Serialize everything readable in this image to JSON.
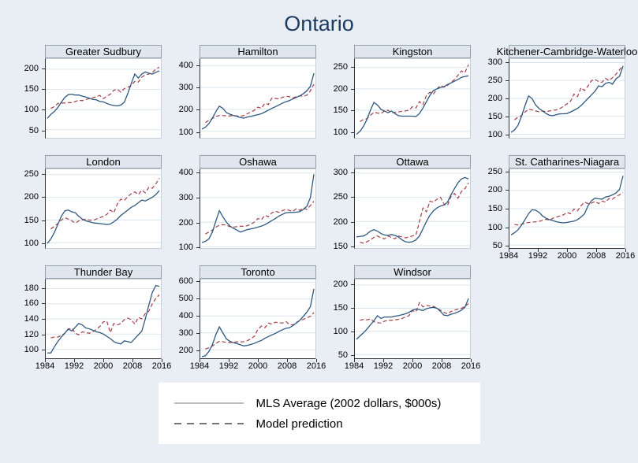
{
  "figure": {
    "title": "Ontario",
    "colors": {
      "background": "#e9eef4",
      "plot-bg": "#ffffff",
      "gridline": "#d9e5ee",
      "light-border": "#c6cfd8",
      "axis": "#303338",
      "mls-line": "#2b567f",
      "model-line": "#a23b44",
      "title": "#1c3c60",
      "panel-title-bg": "#dfe6ed",
      "panel-title-border": "#93a1ad",
      "legend-bg": "#ffffff",
      "legend-solid-sample": "#b9bdc1",
      "legend-dashed-sample": "#73777b"
    }
  },
  "legend": {
    "items": [
      {
        "style": "solid",
        "label": "MLS Average (2002 dollars, $000s)"
      },
      {
        "style": "dashed",
        "label": "Model prediction"
      }
    ]
  },
  "chart_data": {
    "type": "line",
    "title": "Ontario",
    "x_label_ticks": [
      1984,
      1992,
      2000,
      2008,
      2016
    ],
    "x": [
      1984,
      1985,
      1986,
      1987,
      1988,
      1989,
      1990,
      1991,
      1992,
      1993,
      1994,
      1995,
      1996,
      1997,
      1998,
      1999,
      2000,
      2001,
      2002,
      2003,
      2004,
      2005,
      2006,
      2007,
      2008,
      2009,
      2010,
      2011,
      2012,
      2013,
      2014,
      2015,
      2016
    ],
    "series_names": [
      "MLS Average (2002 dollars, $000s)",
      "Model prediction"
    ],
    "panels": [
      {
        "title": "Greater Sudbury",
        "yticks": [
          50,
          100,
          150,
          200
        ],
        "ylim": [
          30,
          225
        ],
        "has_xaxis": false,
        "mls": [
          78,
          88,
          95,
          105,
          118,
          130,
          137,
          138,
          136,
          136,
          133,
          131,
          128,
          125,
          124,
          120,
          119,
          115,
          112,
          110,
          109,
          111,
          118,
          140,
          165,
          188,
          178,
          188,
          193,
          190,
          188,
          192,
          196
        ],
        "model": [
          null,
          103,
          107,
          115,
          116,
          116,
          117,
          117,
          120,
          123,
          122,
          125,
          127,
          129,
          132,
          135,
          127,
          133,
          138,
          148,
          150,
          143,
          152,
          155,
          160,
          170,
          168,
          180,
          186,
          188,
          192,
          200,
          205
        ]
      },
      {
        "title": "Hamilton",
        "yticks": [
          100,
          200,
          300,
          400
        ],
        "ylim": [
          70,
          430
        ],
        "has_xaxis": false,
        "mls": [
          110,
          118,
          135,
          160,
          190,
          215,
          205,
          185,
          178,
          172,
          168,
          162,
          160,
          165,
          168,
          172,
          176,
          180,
          188,
          196,
          205,
          212,
          220,
          228,
          235,
          240,
          248,
          255,
          262,
          272,
          285,
          305,
          365
        ],
        "model": [
          null,
          140,
          150,
          158,
          168,
          172,
          172,
          170,
          170,
          172,
          170,
          168,
          172,
          180,
          188,
          196,
          210,
          205,
          228,
          222,
          252,
          250,
          248,
          255,
          260,
          258,
          252,
          258,
          262,
          260,
          265,
          285,
          315
        ]
      },
      {
        "title": "Kingston",
        "yticks": [
          100,
          150,
          200,
          250
        ],
        "ylim": [
          85,
          270
        ],
        "has_xaxis": false,
        "mls": [
          93,
          100,
          112,
          128,
          150,
          168,
          162,
          152,
          148,
          144,
          148,
          142,
          137,
          136,
          136,
          136,
          136,
          135,
          142,
          155,
          170,
          185,
          196,
          200,
          203,
          205,
          210,
          214,
          218,
          222,
          227,
          229,
          231
        ],
        "model": [
          null,
          123,
          128,
          130,
          138,
          145,
          143,
          142,
          148,
          150,
          144,
          145,
          146,
          147,
          148,
          150,
          158,
          155,
          170,
          163,
          185,
          192,
          188,
          200,
          208,
          204,
          208,
          215,
          222,
          232,
          242,
          238,
          257
        ]
      },
      {
        "title": "Kitchener-Cambridge-Waterloo",
        "yticks": [
          100,
          150,
          200,
          250,
          300
        ],
        "ylim": [
          90,
          310
        ],
        "has_xaxis": false,
        "mls": [
          105,
          112,
          125,
          150,
          180,
          207,
          200,
          182,
          172,
          165,
          158,
          153,
          152,
          155,
          157,
          157,
          158,
          162,
          167,
          172,
          180,
          190,
          200,
          210,
          220,
          235,
          233,
          242,
          245,
          240,
          255,
          262,
          290
        ],
        "model": [
          null,
          140,
          148,
          152,
          162,
          170,
          168,
          165,
          163,
          165,
          163,
          165,
          167,
          168,
          172,
          178,
          185,
          192,
          212,
          205,
          230,
          222,
          235,
          250,
          253,
          247,
          245,
          256,
          250,
          258,
          268,
          280,
          292
        ]
      },
      {
        "title": "London",
        "yticks": [
          100,
          150,
          200,
          250
        ],
        "ylim": [
          88,
          262
        ],
        "has_xaxis": false,
        "mls": [
          98,
          108,
          122,
          140,
          158,
          170,
          172,
          168,
          166,
          158,
          152,
          148,
          146,
          144,
          143,
          142,
          141,
          140,
          141,
          146,
          152,
          160,
          166,
          172,
          178,
          182,
          188,
          194,
          192,
          196,
          200,
          206,
          215
        ],
        "model": [
          null,
          130,
          136,
          142,
          150,
          155,
          152,
          148,
          143,
          148,
          150,
          152,
          150,
          149,
          152,
          155,
          158,
          162,
          172,
          166,
          185,
          196,
          193,
          202,
          208,
          212,
          206,
          216,
          210,
          222,
          220,
          230,
          242
        ]
      },
      {
        "title": "Oshawa",
        "yticks": [
          100,
          200,
          300,
          400
        ],
        "ylim": [
          95,
          415
        ],
        "has_xaxis": false,
        "mls": [
          118,
          122,
          132,
          160,
          205,
          247,
          222,
          200,
          185,
          175,
          168,
          160,
          165,
          170,
          173,
          176,
          180,
          184,
          190,
          198,
          207,
          215,
          225,
          232,
          238,
          240,
          240,
          241,
          243,
          252,
          265,
          300,
          395
        ],
        "model": [
          null,
          152,
          160,
          168,
          180,
          188,
          190,
          188,
          182,
          180,
          182,
          184,
          183,
          186,
          192,
          200,
          215,
          210,
          228,
          222,
          238,
          245,
          240,
          247,
          252,
          248,
          244,
          255,
          248,
          258,
          252,
          268,
          285
        ]
      },
      {
        "title": "Ottawa",
        "yticks": [
          150,
          200,
          250,
          300
        ],
        "ylim": [
          145,
          308
        ],
        "has_xaxis": false,
        "mls": [
          168,
          169,
          170,
          174,
          180,
          183,
          180,
          175,
          172,
          171,
          173,
          171,
          168,
          162,
          158,
          157,
          158,
          162,
          170,
          185,
          200,
          213,
          222,
          228,
          232,
          234,
          240,
          255,
          268,
          280,
          288,
          291,
          288
        ],
        "model": [
          null,
          157,
          155,
          158,
          162,
          167,
          170,
          166,
          164,
          170,
          167,
          164,
          170,
          168,
          166,
          168,
          170,
          172,
          200,
          228,
          220,
          242,
          240,
          246,
          250,
          236,
          233,
          252,
          258,
          248,
          262,
          268,
          280
        ]
      },
      {
        "title": "St. Catharines-Niagara",
        "yticks": [
          50,
          100,
          150,
          200,
          250
        ],
        "ylim": [
          42,
          258
        ],
        "has_xaxis": true,
        "mls": [
          78,
          84,
          92,
          105,
          120,
          136,
          147,
          146,
          140,
          130,
          124,
          120,
          117,
          114,
          112,
          111,
          112,
          114,
          116,
          120,
          127,
          136,
          158,
          172,
          179,
          177,
          176,
          182,
          184,
          188,
          193,
          203,
          240
        ],
        "model": [
          null,
          107,
          105,
          107,
          110,
          112,
          113,
          114,
          115,
          118,
          121,
          118,
          124,
          127,
          130,
          133,
          140,
          136,
          149,
          144,
          158,
          168,
          164,
          165,
          170,
          164,
          171,
          168,
          178,
          176,
          184,
          188,
          194
        ]
      },
      {
        "title": "Thunder Bay",
        "yticks": [
          100,
          120,
          140,
          160,
          180
        ],
        "ylim": [
          88,
          192
        ],
        "has_xaxis": true,
        "mls": [
          95,
          95,
          103,
          110,
          116,
          121,
          127,
          124,
          129,
          134,
          132,
          128,
          127,
          125,
          123,
          122,
          120,
          117,
          114,
          110,
          108,
          107,
          111,
          110,
          109,
          114,
          119,
          124,
          140,
          158,
          175,
          184,
          183
        ],
        "model": [
          null,
          115,
          116,
          116,
          118,
          121,
          126,
          128,
          121,
          119,
          123,
          122,
          121,
          123,
          126,
          130,
          136,
          137,
          122,
          134,
          132,
          134,
          139,
          141,
          139,
          133,
          142,
          140,
          147,
          150,
          160,
          167,
          172
        ]
      },
      {
        "title": "Toronto",
        "yticks": [
          200,
          300,
          400,
          500,
          600
        ],
        "ylim": [
          150,
          615
        ],
        "has_xaxis": true,
        "mls": [
          160,
          165,
          190,
          230,
          290,
          335,
          300,
          265,
          250,
          242,
          237,
          230,
          223,
          226,
          232,
          238,
          248,
          255,
          268,
          278,
          288,
          297,
          308,
          318,
          327,
          330,
          343,
          358,
          375,
          398,
          422,
          455,
          560
        ],
        "model": [
          null,
          205,
          212,
          222,
          238,
          250,
          248,
          244,
          243,
          245,
          247,
          246,
          248,
          254,
          265,
          280,
          320,
          340,
          330,
          358,
          352,
          363,
          360,
          358,
          367,
          350,
          346,
          362,
          372,
          380,
          388,
          398,
          420
        ]
      },
      {
        "title": "Windsor",
        "yticks": [
          50,
          100,
          150,
          200
        ],
        "ylim": [
          42,
          212
        ],
        "has_xaxis": true,
        "mls": [
          83,
          90,
          97,
          105,
          114,
          123,
          134,
          128,
          131,
          131,
          131,
          133,
          134,
          136,
          138,
          141,
          146,
          148,
          147,
          145,
          149,
          151,
          152,
          150,
          143,
          135,
          134,
          137,
          139,
          142,
          146,
          152,
          171
        ],
        "model": [
          null,
          124,
          126,
          125,
          127,
          121,
          119,
          118,
          122,
          124,
          124,
          125,
          126,
          128,
          131,
          134,
          145,
          142,
          162,
          153,
          156,
          155,
          154,
          150,
          146,
          141,
          138,
          143,
          146,
          148,
          150,
          154,
          160
        ]
      }
    ]
  }
}
